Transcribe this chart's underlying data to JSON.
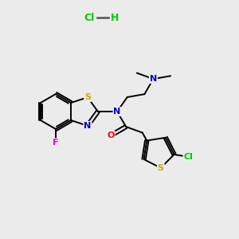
{
  "bg_color": "#ebebeb",
  "bond_color": "#000000",
  "bond_width": 1.4,
  "atom_colors": {
    "N": "#0000cc",
    "O": "#ff0000",
    "S": "#ccaa00",
    "F": "#ee00ee",
    "Cl": "#00cc00",
    "H": "#000000",
    "C": "#000000"
  },
  "hcl_color": "#00cc00",
  "hcl_dash_color": "#555555"
}
